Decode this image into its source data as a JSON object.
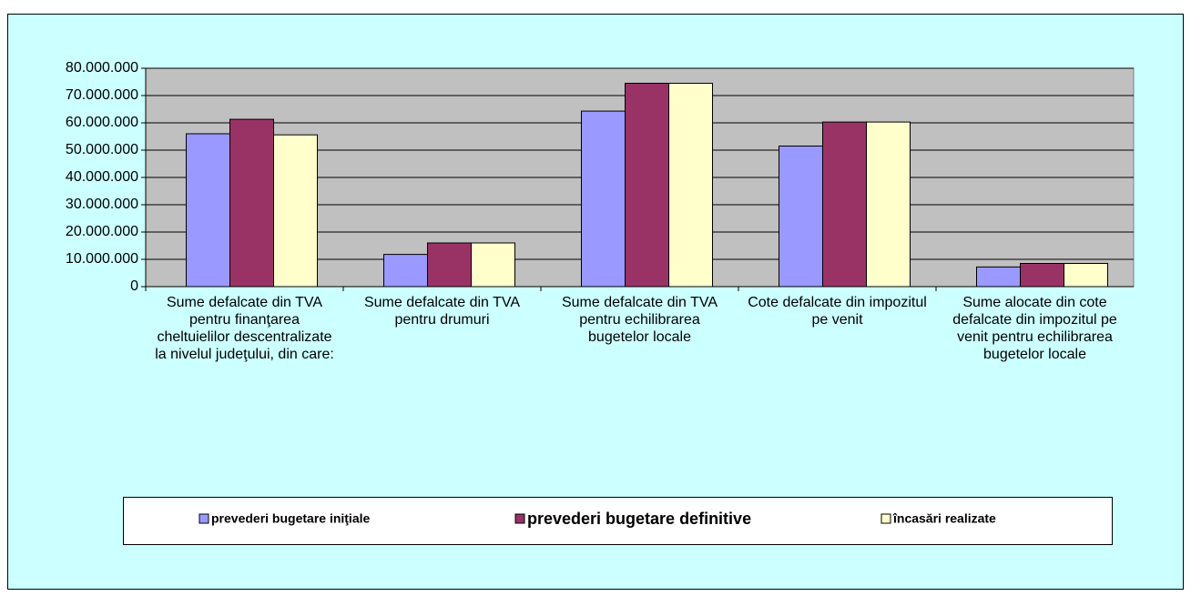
{
  "chart_data": {
    "type": "bar",
    "categories": [
      "Sume defalcate din TVA pentru finanţarea cheltuielilor descentralizate la nivelul judeţului, din care:",
      "Sume defalcate din TVA pentru drumuri",
      "Sume defalcate din TVA pentru echilibrarea bugetelor locale",
      "Cote defalcate din impozitul pe venit",
      "Sume alocate din cote defalcate din impozitul pe venit pentru echilibrarea bugetelor locale"
    ],
    "series": [
      {
        "name": "prevederi bugetare iniţiale",
        "color": "#9999ff",
        "values": [
          56000000,
          11800000,
          64300000,
          51500000,
          7200000
        ]
      },
      {
        "name": "prevederi bugetare definitive",
        "color": "#993366",
        "values": [
          61300000,
          16000000,
          74500000,
          60300000,
          8500000
        ]
      },
      {
        "name": "încasări realizate",
        "color": "#ffffcc",
        "values": [
          55600000,
          16000000,
          74500000,
          60300000,
          8500000
        ]
      }
    ],
    "ylim": [
      0,
      80000000
    ],
    "yticks": [
      0,
      {
        "value": 10000000,
        "label": "10.000.000"
      },
      {
        "value": 20000000,
        "label": "20.000.000"
      },
      {
        "value": 30000000,
        "label": "30.000.000"
      },
      {
        "value": 40000000,
        "label": "40.000.000"
      },
      {
        "value": 50000000,
        "label": "50.000.000"
      },
      {
        "value": 60000000,
        "label": "60.000.000"
      },
      {
        "value": 70000000,
        "label": "70.000.000"
      },
      {
        "value": 80000000,
        "label": "80.000.000"
      }
    ],
    "grid": true,
    "legend": "bottom"
  }
}
